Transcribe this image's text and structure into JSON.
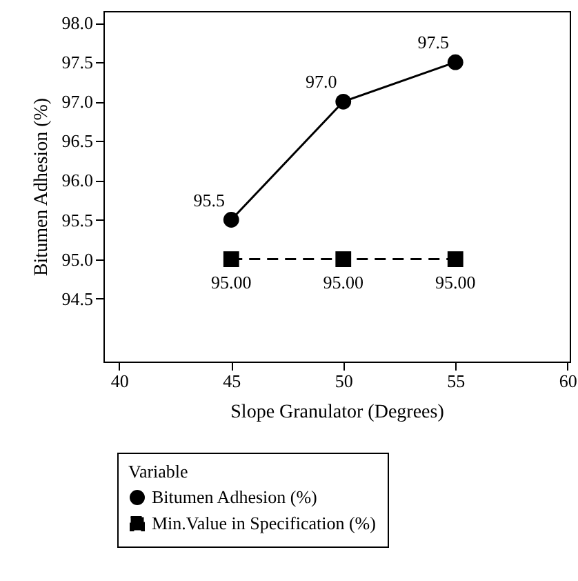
{
  "chart_data": {
    "type": "line",
    "xlabel": "Slope Granulator (Degrees)",
    "ylabel": "Bitumen Adhesion (%)",
    "legend_title": "Variable",
    "legend": "bottom",
    "grid": false,
    "x": [
      45,
      50,
      55
    ],
    "series": [
      {
        "name": "Bitumen Adhesion (%)",
        "color": "#000000",
        "marker": "circle",
        "line_style": "solid",
        "values": [
          95.5,
          97.0,
          97.5
        ],
        "value_labels": [
          "95.5",
          "97.0",
          "97.5"
        ]
      },
      {
        "name": "Min.Value in Specification (%)",
        "color": "#000000",
        "marker": "square",
        "line_style": "dashed",
        "values": [
          95.0,
          95.0,
          95.0
        ],
        "value_labels": [
          "95.00",
          "95.00",
          "95.00"
        ]
      }
    ],
    "xlim": [
      39.3,
      60.1
    ],
    "xticks": [
      40,
      45,
      50,
      55,
      60
    ],
    "ylim": [
      93.7,
      98.15
    ],
    "yticks": [
      {
        "value": 94.5,
        "label": "94.5"
      },
      {
        "value": 95,
        "label": "95.0"
      },
      {
        "value": 95.5,
        "label": "95.5"
      },
      {
        "value": 96,
        "label": "96.0"
      },
      {
        "value": 96.5,
        "label": "96.5"
      },
      {
        "value": 97,
        "label": "97.0"
      },
      {
        "value": 97.5,
        "label": "97.5"
      },
      {
        "value": 98,
        "label": "98.0"
      }
    ]
  }
}
